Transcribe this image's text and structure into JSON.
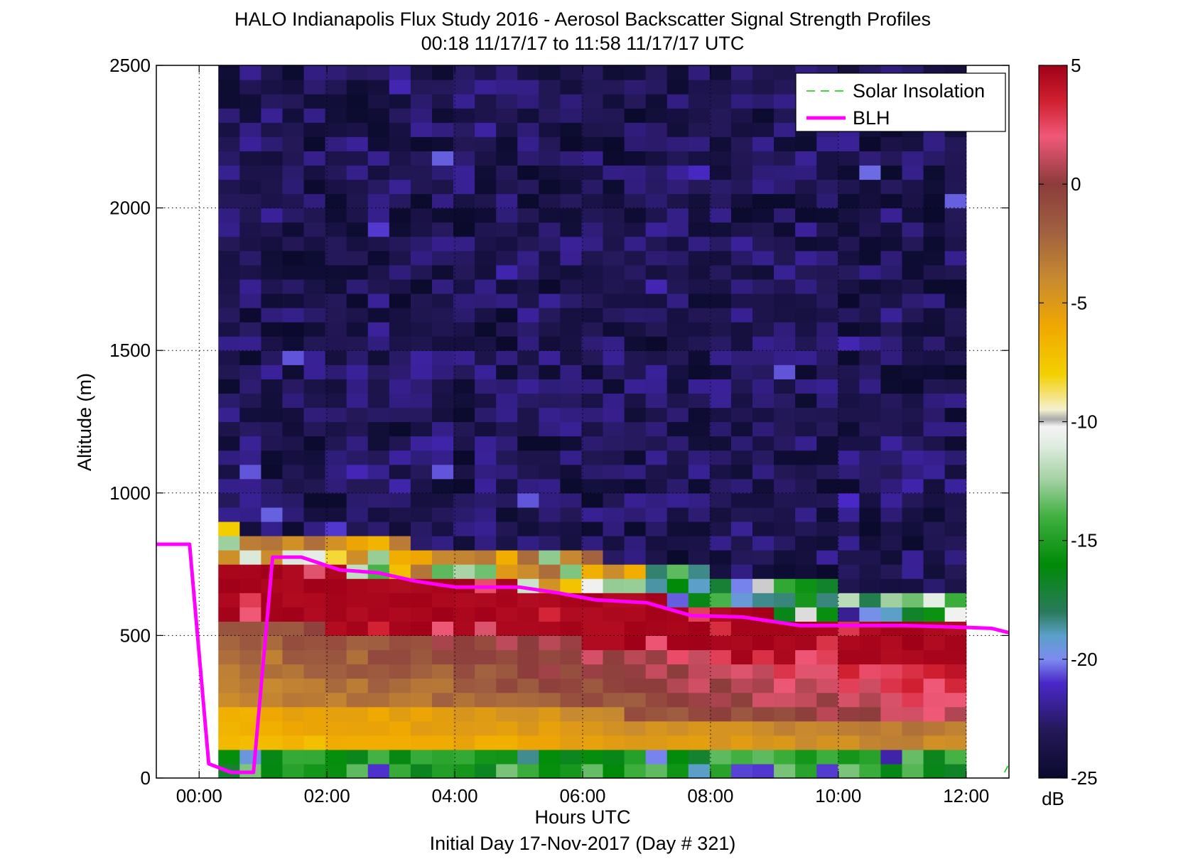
{
  "chart_data": {
    "type": "heatmap",
    "title": "HALO Indianapolis Flux Study 2016 - Aerosol Backscatter Signal Strength Profiles",
    "subtitle": "00:18 11/17/17 to 11:58 11/17/17  UTC",
    "xlabel": "Hours UTC",
    "xlabel2": "Initial Day 17-Nov-2017 (Day # 321)",
    "ylabel": "Altitude (m)",
    "xlim_hours": [
      -0.67,
      12.67
    ],
    "ylim": [
      0,
      2500
    ],
    "x_ticks": [
      {
        "value": 0,
        "label": "00:00"
      },
      {
        "value": 2,
        "label": "02:00"
      },
      {
        "value": 4,
        "label": "04:00"
      },
      {
        "value": 6,
        "label": "06:00"
      },
      {
        "value": 8,
        "label": "08:00"
      },
      {
        "value": 10,
        "label": "10:00"
      },
      {
        "value": 12,
        "label": "12:00"
      }
    ],
    "y_ticks": [
      {
        "value": 0,
        "label": "0"
      },
      {
        "value": 500,
        "label": "500"
      },
      {
        "value": 1000,
        "label": "1000"
      },
      {
        "value": 1500,
        "label": "1500"
      },
      {
        "value": 2000,
        "label": "2000"
      },
      {
        "value": 2500,
        "label": "2500"
      }
    ],
    "grid": true,
    "colorbar": {
      "unit": "dB",
      "range": [
        -25,
        5
      ],
      "ticks": [
        {
          "value": 5,
          "label": "5"
        },
        {
          "value": 0,
          "label": "0"
        },
        {
          "value": -5,
          "label": "-5"
        },
        {
          "value": -10,
          "label": "-10"
        },
        {
          "value": -15,
          "label": "-15"
        },
        {
          "value": -20,
          "label": "-20"
        },
        {
          "value": -25,
          "label": "-25"
        }
      ],
      "stops": [
        {
          "v": -25,
          "c": "#0a0a2c"
        },
        {
          "v": -23,
          "c": "#241858"
        },
        {
          "v": -21,
          "c": "#4a28c8"
        },
        {
          "v": -20,
          "c": "#7c8cf0"
        },
        {
          "v": -19,
          "c": "#5aa0c8"
        },
        {
          "v": -18,
          "c": "#2a7a5a"
        },
        {
          "v": -16,
          "c": "#008a08"
        },
        {
          "v": -14,
          "c": "#40b040"
        },
        {
          "v": -12.5,
          "c": "#a0d0a0"
        },
        {
          "v": -11,
          "c": "#e0ece0"
        },
        {
          "v": -10.2,
          "c": "#f4f4f4"
        },
        {
          "v": -9.9,
          "c": "#a8a8a8"
        },
        {
          "v": -9.5,
          "c": "#f4f0d0"
        },
        {
          "v": -8,
          "c": "#f4d000"
        },
        {
          "v": -6,
          "c": "#f0a800"
        },
        {
          "v": -4,
          "c": "#c88a30"
        },
        {
          "v": -2,
          "c": "#a06040"
        },
        {
          "v": 0,
          "c": "#8c3c3c"
        },
        {
          "v": 2,
          "c": "#f05878"
        },
        {
          "v": 3.5,
          "c": "#d02030"
        },
        {
          "v": 5,
          "c": "#a00018"
        }
      ]
    },
    "grid_cells": {
      "x_start_hours": 0.3,
      "x_end_hours": 12.0,
      "columns": 35,
      "y_bin_m": 50,
      "layer_profile_breaks": [
        {
          "hour": 0.3,
          "top_m": 760,
          "green_top_m": 70
        },
        {
          "hour": 6.0,
          "top_m": 660
        },
        {
          "hour": 9.5,
          "top_m": 560
        },
        {
          "hour": 12.0,
          "top_m": 530
        }
      ]
    },
    "series": [
      {
        "name": "BLH",
        "color": "#ff00ff",
        "x": [
          -0.67,
          -0.15,
          0.15,
          0.5,
          0.85,
          1.15,
          1.6,
          2.2,
          2.8,
          3.4,
          4.0,
          5.0,
          5.6,
          6.2,
          7.0,
          7.7,
          8.5,
          9.4,
          10.2,
          11.0,
          11.8,
          12.4,
          12.67
        ],
        "y": [
          820,
          820,
          50,
          20,
          20,
          775,
          775,
          730,
          720,
          690,
          670,
          670,
          650,
          625,
          615,
          570,
          565,
          535,
          535,
          535,
          530,
          525,
          510
        ]
      },
      {
        "name": "Solar Insolation",
        "color": "#00cc00",
        "x": [
          12.6,
          12.67
        ],
        "y": [
          20,
          50
        ]
      }
    ]
  }
}
